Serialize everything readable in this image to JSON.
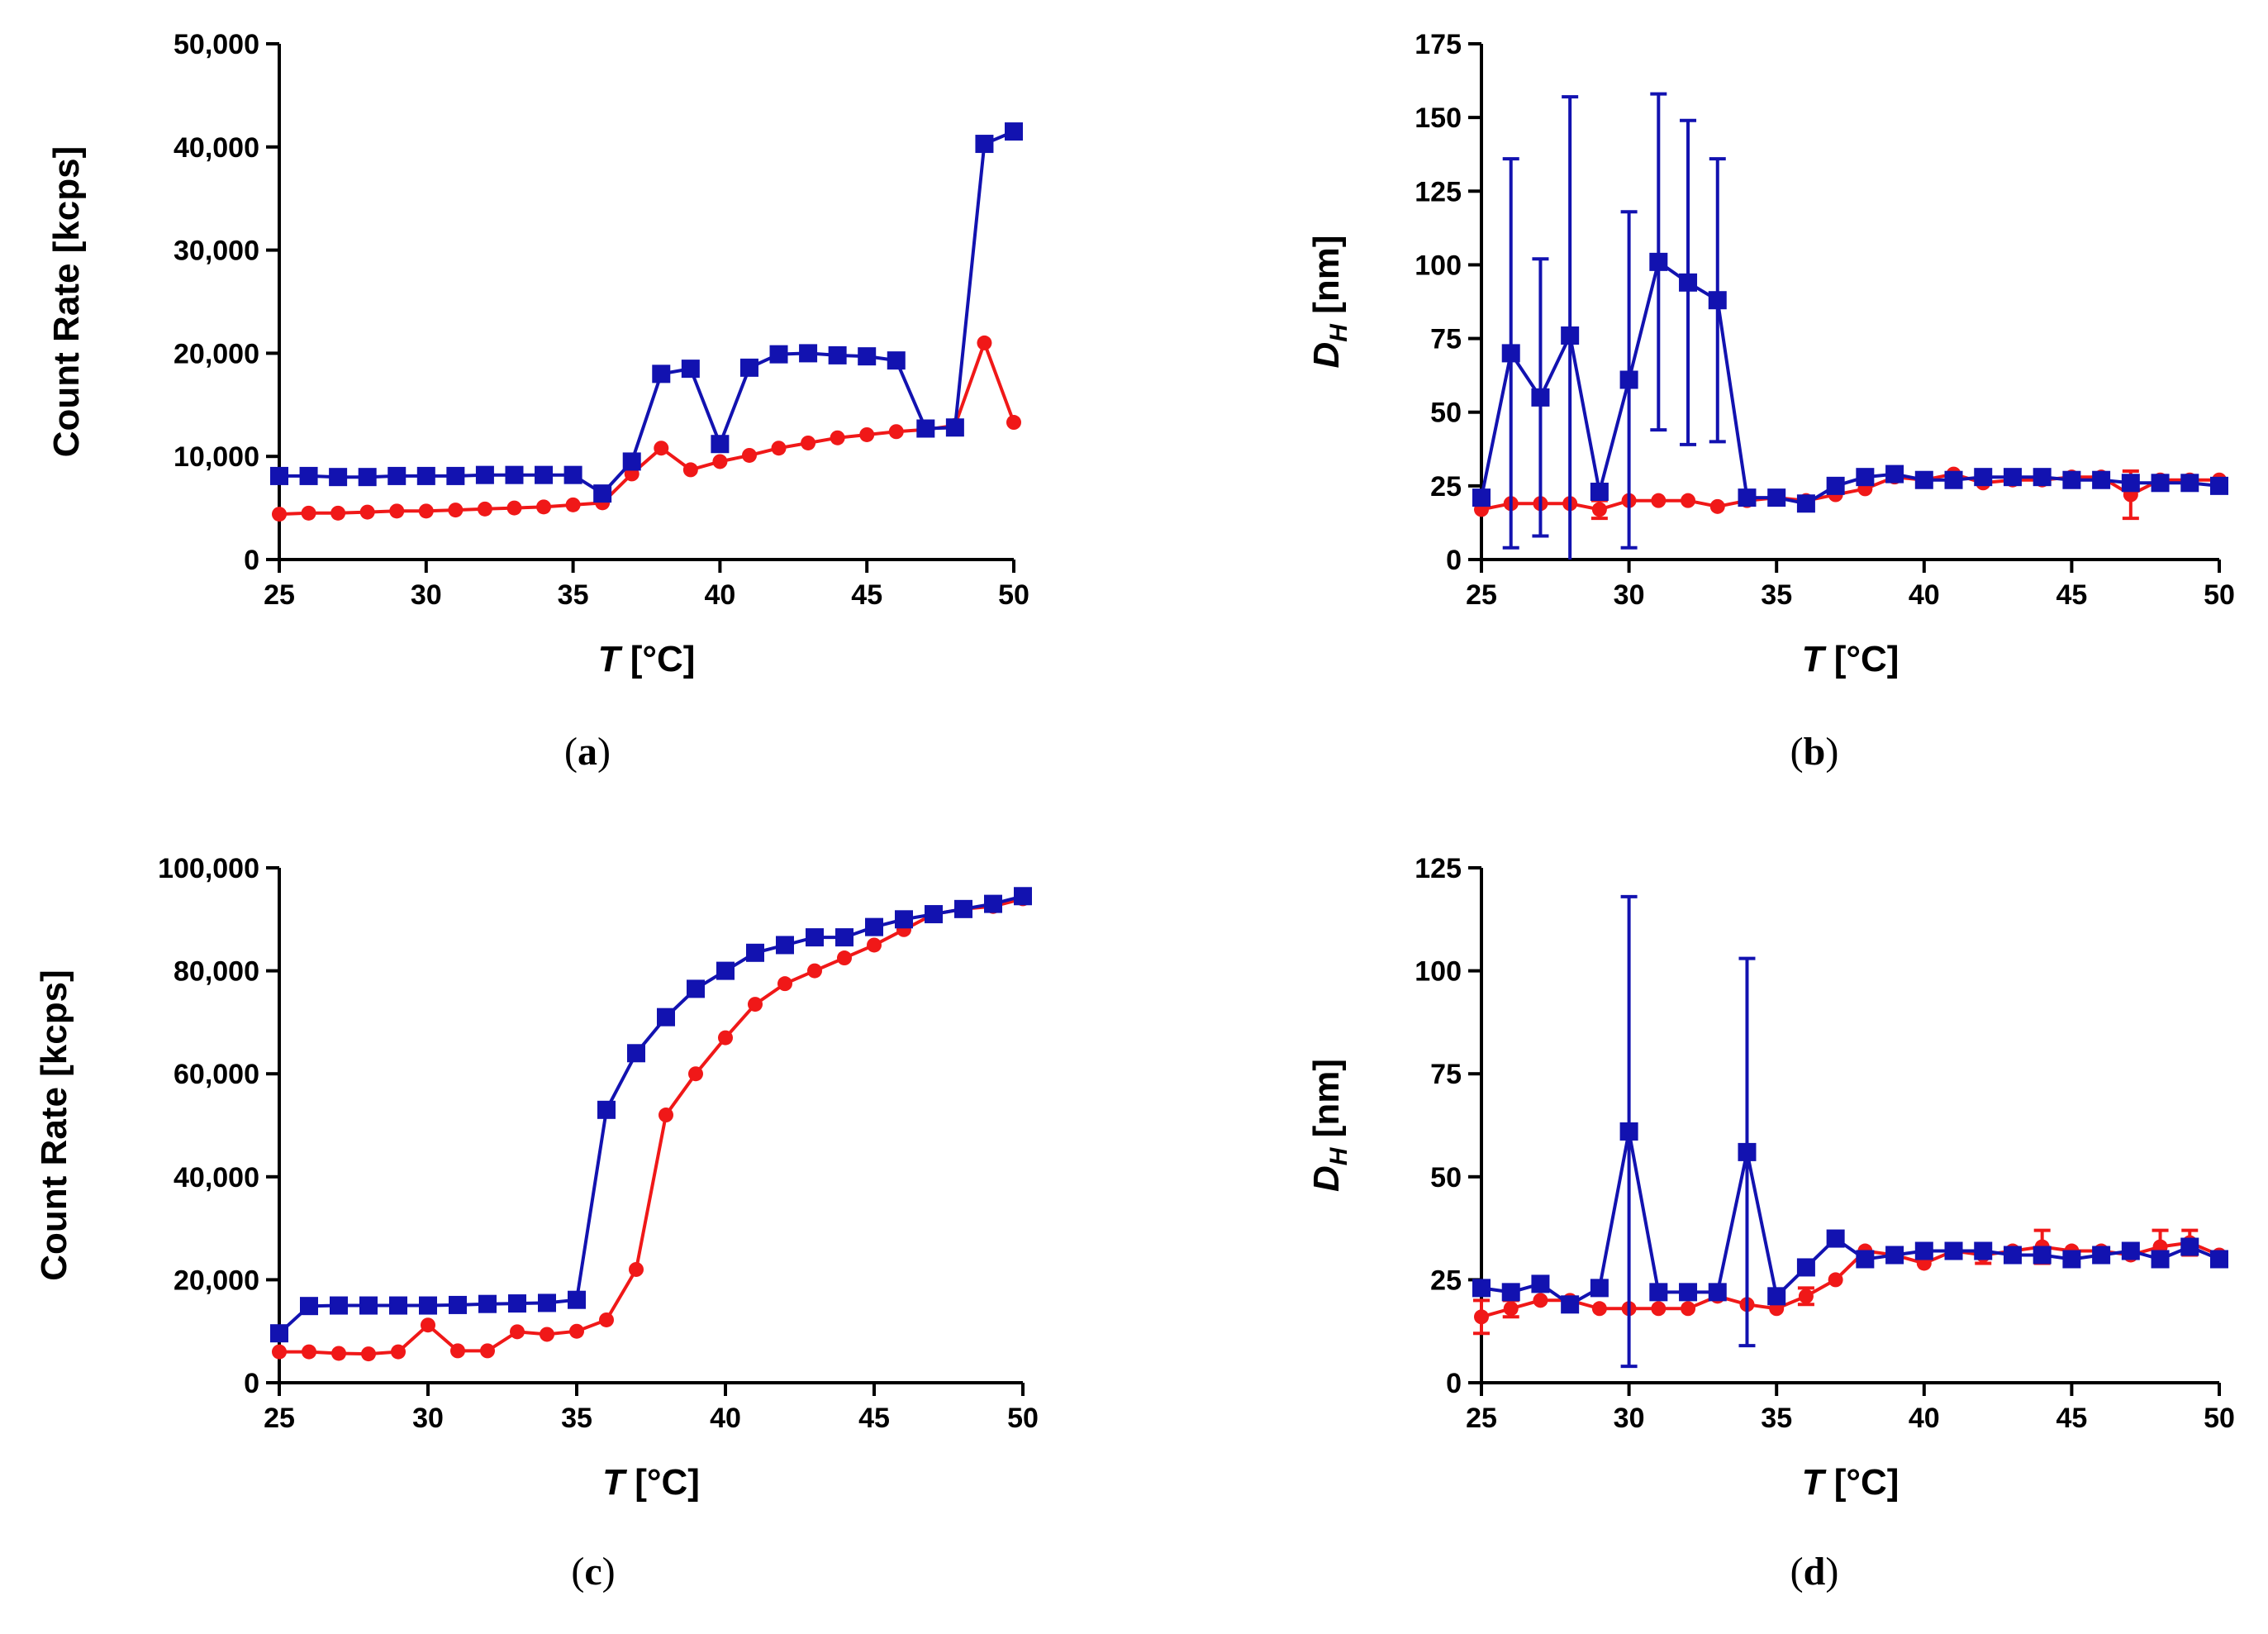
{
  "colors": {
    "blue": "#1212b0",
    "red": "#f01818",
    "axis": "#000000"
  },
  "chart_data": [
    {
      "id": "a",
      "type": "line",
      "caption_label": "a",
      "ylabel": "Count Rate [kcps]",
      "xlabel_italic": "T",
      "xlabel_unit": " [°C]",
      "xlim": [
        25,
        50
      ],
      "ylim": [
        0,
        50000
      ],
      "xticks": [
        25,
        30,
        35,
        40,
        45,
        50
      ],
      "xtick_labels": [
        "25",
        "30",
        "35",
        "40",
        "45",
        "50"
      ],
      "yticks": [
        0,
        10000,
        20000,
        30000,
        40000,
        50000
      ],
      "ytick_labels": [
        "0",
        "10,000",
        "20,000",
        "30,000",
        "40,000",
        "50,000"
      ],
      "series": [
        {
          "name": "red",
          "color": "#f01818",
          "marker": "circle",
          "x": [
            25,
            26,
            27,
            28,
            29,
            30,
            31,
            32,
            33,
            34,
            35,
            36,
            37,
            38,
            39,
            40,
            41,
            42,
            43,
            44,
            45,
            46,
            47,
            48,
            49,
            50
          ],
          "y": [
            4400,
            4500,
            4500,
            4600,
            4700,
            4700,
            4800,
            4900,
            5000,
            5100,
            5300,
            5500,
            8300,
            10800,
            8700,
            9500,
            10100,
            10800,
            11300,
            11800,
            12100,
            12400,
            12600,
            13000,
            21000,
            13300
          ]
        },
        {
          "name": "blue",
          "color": "#1212b0",
          "marker": "square",
          "x": [
            25,
            26,
            27,
            28,
            29,
            30,
            31,
            32,
            33,
            34,
            35,
            36,
            37,
            38,
            39,
            40,
            41,
            42,
            43,
            44,
            45,
            46,
            47,
            48,
            49,
            50
          ],
          "y": [
            8100,
            8100,
            8000,
            8000,
            8100,
            8100,
            8100,
            8200,
            8200,
            8200,
            8200,
            6400,
            9500,
            18000,
            18500,
            11200,
            18600,
            19900,
            20000,
            19800,
            19700,
            19300,
            12700,
            12800,
            40300,
            41500
          ]
        }
      ]
    },
    {
      "id": "b",
      "type": "line",
      "caption_label": "b",
      "ylabel_italic": "D",
      "ylabel_sub": "H",
      "ylabel_unit": " [nm]",
      "xlabel_italic": "T",
      "xlabel_unit": " [°C]",
      "xlim": [
        25,
        50
      ],
      "ylim": [
        0,
        175
      ],
      "xticks": [
        25,
        30,
        35,
        40,
        45,
        50
      ],
      "xtick_labels": [
        "25",
        "30",
        "35",
        "40",
        "45",
        "50"
      ],
      "yticks": [
        0,
        25,
        50,
        75,
        100,
        125,
        150,
        175
      ],
      "ytick_labels": [
        "0",
        "25",
        "50",
        "75",
        "100",
        "125",
        "150",
        "175"
      ],
      "series": [
        {
          "name": "red",
          "color": "#f01818",
          "marker": "circle",
          "x": [
            25,
            26,
            27,
            28,
            29,
            30,
            31,
            32,
            33,
            34,
            35,
            36,
            37,
            38,
            39,
            40,
            41,
            42,
            43,
            44,
            45,
            46,
            47,
            48,
            49,
            50
          ],
          "y": [
            17,
            19,
            19,
            19,
            17,
            20,
            20,
            20,
            18,
            20,
            21,
            20,
            22,
            24,
            28,
            27,
            29,
            26,
            27,
            27,
            28,
            28,
            22,
            27,
            27,
            27
          ],
          "err": [
            0,
            0,
            0,
            0,
            3,
            0,
            0,
            0,
            0,
            0,
            0,
            0,
            0,
            0,
            0,
            0,
            0,
            0,
            0,
            0,
            0,
            0,
            8,
            0,
            0,
            0
          ]
        },
        {
          "name": "blue",
          "color": "#1212b0",
          "marker": "square",
          "x": [
            25,
            26,
            27,
            28,
            29,
            30,
            31,
            32,
            33,
            34,
            35,
            36,
            37,
            38,
            39,
            40,
            41,
            42,
            43,
            44,
            45,
            46,
            47,
            48,
            49,
            50
          ],
          "y": [
            21,
            70,
            55,
            76,
            23,
            61,
            101,
            94,
            88,
            21,
            21,
            19,
            25,
            28,
            29,
            27,
            27,
            28,
            28,
            28,
            27,
            27,
            26,
            26,
            26,
            25
          ],
          "err": [
            0,
            66,
            47,
            81,
            0,
            57,
            57,
            55,
            48,
            0,
            0,
            0,
            0,
            0,
            0,
            0,
            0,
            0,
            0,
            0,
            0,
            0,
            0,
            0,
            0,
            0
          ]
        }
      ]
    },
    {
      "id": "c",
      "type": "line",
      "caption_label": "c",
      "ylabel": "Count Rate [kcps]",
      "xlabel_italic": "T",
      "xlabel_unit": " [°C]",
      "xlim": [
        25,
        50
      ],
      "ylim": [
        0,
        100000
      ],
      "xticks": [
        25,
        30,
        35,
        40,
        45,
        50
      ],
      "xtick_labels": [
        "25",
        "30",
        "35",
        "40",
        "45",
        "50"
      ],
      "yticks": [
        0,
        20000,
        40000,
        60000,
        80000,
        100000
      ],
      "ytick_labels": [
        "0",
        "20,000",
        "40,000",
        "60,000",
        "80,000",
        "100,000"
      ],
      "series": [
        {
          "name": "red",
          "color": "#f01818",
          "marker": "circle",
          "x": [
            25,
            26,
            27,
            28,
            29,
            30,
            31,
            32,
            33,
            34,
            35,
            36,
            37,
            38,
            39,
            40,
            41,
            42,
            43,
            44,
            45,
            46,
            47,
            48,
            49,
            50
          ],
          "y": [
            6000,
            6000,
            5700,
            5600,
            6000,
            11200,
            6200,
            6200,
            9900,
            9400,
            10000,
            12200,
            22000,
            52000,
            60000,
            67000,
            73500,
            77500,
            80000,
            82500,
            85000,
            88000,
            91000,
            92000,
            92500,
            94000
          ]
        },
        {
          "name": "blue",
          "color": "#1212b0",
          "marker": "square",
          "x": [
            25,
            26,
            27,
            28,
            29,
            30,
            31,
            32,
            33,
            34,
            35,
            36,
            37,
            38,
            39,
            40,
            41,
            42,
            43,
            44,
            45,
            46,
            47,
            48,
            49,
            50
          ],
          "y": [
            9600,
            14900,
            15000,
            15000,
            15000,
            15000,
            15100,
            15300,
            15400,
            15500,
            16100,
            53000,
            64000,
            71000,
            76500,
            80000,
            83500,
            85000,
            86500,
            86500,
            88500,
            90000,
            91000,
            92000,
            93000,
            94500
          ]
        }
      ]
    },
    {
      "id": "d",
      "type": "line",
      "caption_label": "d",
      "ylabel_italic": "D",
      "ylabel_sub": "H",
      "ylabel_unit": " [nm]",
      "xlabel_italic": "T",
      "xlabel_unit": " [°C]",
      "xlim": [
        25,
        50
      ],
      "ylim": [
        0,
        125
      ],
      "xticks": [
        25,
        30,
        35,
        40,
        45,
        50
      ],
      "xtick_labels": [
        "25",
        "30",
        "35",
        "40",
        "45",
        "50"
      ],
      "yticks": [
        0,
        25,
        50,
        75,
        100,
        125
      ],
      "ytick_labels": [
        "0",
        "25",
        "50",
        "75",
        "100",
        "125"
      ],
      "series": [
        {
          "name": "red",
          "color": "#f01818",
          "marker": "circle",
          "x": [
            25,
            26,
            27,
            28,
            29,
            30,
            31,
            32,
            33,
            34,
            35,
            36,
            37,
            38,
            39,
            40,
            41,
            42,
            43,
            44,
            45,
            46,
            47,
            48,
            49,
            50
          ],
          "y": [
            16,
            18,
            20,
            20,
            18,
            18,
            18,
            18,
            21,
            19,
            18,
            21,
            25,
            32,
            31,
            29,
            32,
            31,
            32,
            33,
            32,
            32,
            31,
            33,
            34,
            31
          ],
          "err": [
            4,
            2,
            0,
            0,
            0,
            0,
            0,
            0,
            0,
            0,
            0,
            2,
            0,
            0,
            0,
            0,
            0,
            2,
            0,
            4,
            0,
            0,
            0,
            4,
            3,
            0
          ]
        },
        {
          "name": "blue",
          "color": "#1212b0",
          "marker": "square",
          "x": [
            25,
            26,
            27,
            28,
            29,
            30,
            31,
            32,
            33,
            34,
            35,
            36,
            37,
            38,
            39,
            40,
            41,
            42,
            43,
            44,
            45,
            46,
            47,
            48,
            49,
            50
          ],
          "y": [
            23,
            22,
            24,
            19,
            23,
            61,
            22,
            22,
            22,
            56,
            21,
            28,
            35,
            30,
            31,
            32,
            32,
            32,
            31,
            31,
            30,
            31,
            32,
            30,
            33,
            30
          ],
          "err": [
            0,
            0,
            0,
            0,
            0,
            57,
            0,
            0,
            0,
            47,
            0,
            0,
            0,
            0,
            0,
            0,
            0,
            0,
            0,
            0,
            0,
            0,
            0,
            0,
            0,
            0
          ]
        }
      ]
    }
  ]
}
